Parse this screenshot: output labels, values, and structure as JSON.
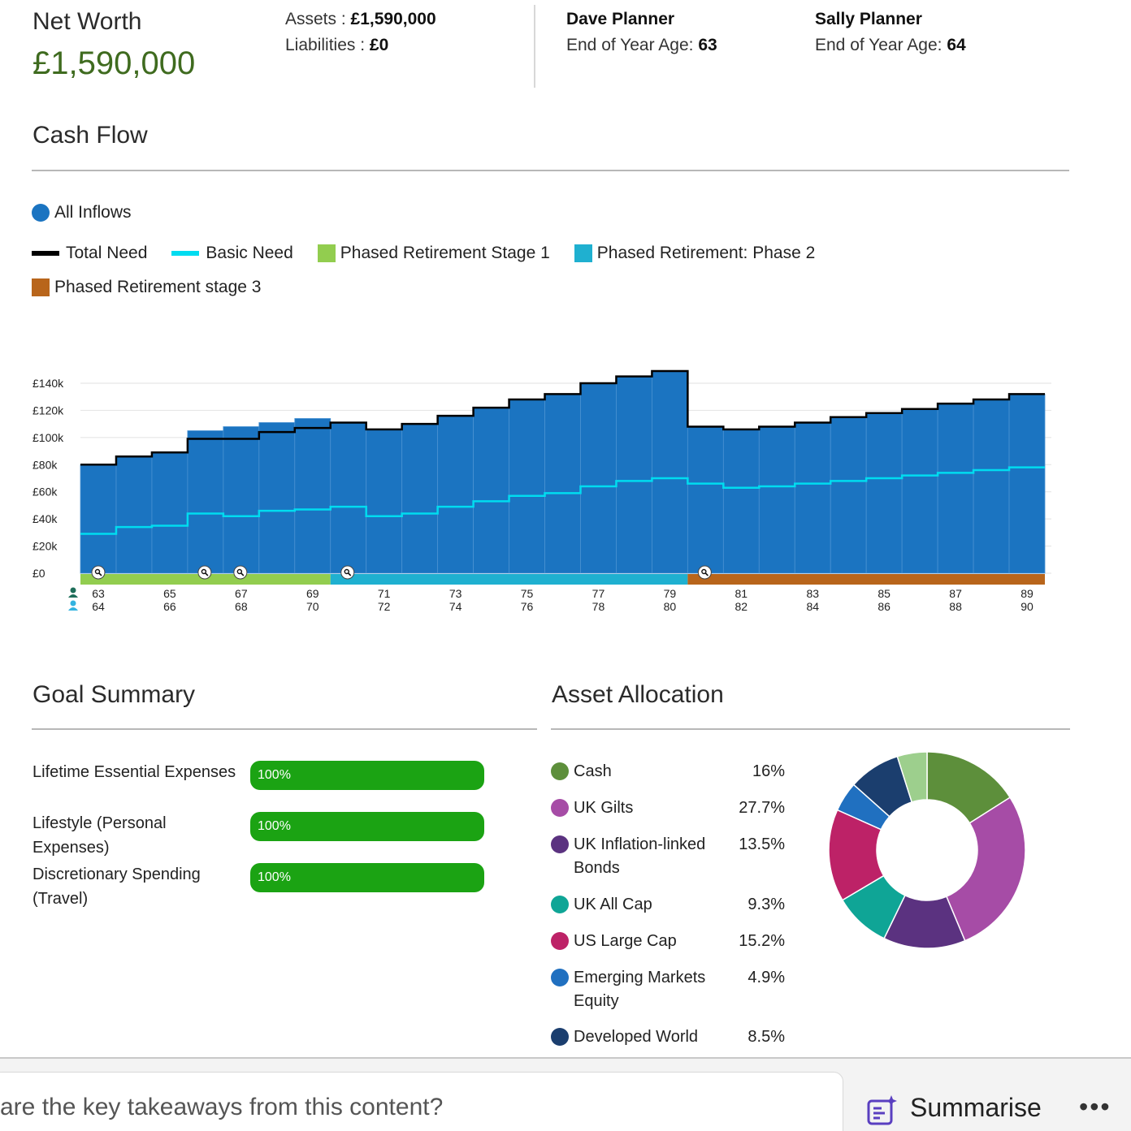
{
  "header": {
    "net_worth_label": "Net Worth",
    "net_worth_value": "£1,590,000",
    "assets_label": "Assets : ",
    "assets_value": "£1,590,000",
    "liabilities_label": "Liabilities : ",
    "liabilities_value": "£0",
    "person1": {
      "name": "Dave Planner",
      "age_label": "End of Year Age: ",
      "age": "63"
    },
    "person2": {
      "name": "Sally Planner",
      "age_label": "End of Year Age: ",
      "age": "64"
    }
  },
  "cash_flow": {
    "title": "Cash Flow",
    "legend": {
      "all_inflows": "All Inflows",
      "total_need": "Total Need",
      "basic_need": "Basic Need",
      "stage1": "Phased Retirement Stage 1",
      "phase2": "Phased Retirement: Phase 2",
      "stage3": "Phased Retirement stage 3"
    }
  },
  "colors": {
    "inflow": "#1b74c1",
    "total_need": "#000000",
    "basic_need": "#00dcf0",
    "stage1": "#92cd4f",
    "phase2": "#1fb0d0",
    "stage3": "#b8651b",
    "accent_green": "#3f6b1f",
    "goal_bar": "#1ba313"
  },
  "chart_data": {
    "type": "bar",
    "title": "Cash Flow",
    "ylim": [
      0,
      140000
    ],
    "ytick_labels": [
      "£0",
      "£20k",
      "£40k",
      "£60k",
      "£80k",
      "£100k",
      "£120k",
      "£140k"
    ],
    "ages_dave": [
      63,
      64,
      65,
      66,
      67,
      68,
      69,
      70,
      71,
      72,
      73,
      74,
      75,
      76,
      77,
      78,
      79,
      80,
      81,
      82,
      83,
      84,
      85,
      86,
      87,
      88,
      89
    ],
    "ages_sally": [
      64,
      65,
      66,
      67,
      68,
      69,
      70,
      71,
      72,
      73,
      74,
      75,
      76,
      77,
      78,
      79,
      80,
      81,
      82,
      83,
      84,
      85,
      86,
      87,
      88,
      89,
      90
    ],
    "x_tick_labels_dave": [
      "63",
      "65",
      "67",
      "69",
      "71",
      "73",
      "75",
      "77",
      "79",
      "81",
      "83",
      "85",
      "87",
      "89"
    ],
    "x_tick_labels_sally": [
      "64",
      "66",
      "68",
      "70",
      "72",
      "74",
      "76",
      "78",
      "80",
      "82",
      "84",
      "86",
      "88",
      "90"
    ],
    "series": [
      {
        "name": "All Inflows",
        "type": "bar",
        "values": [
          80000,
          86000,
          89000,
          105000,
          108000,
          111000,
          114000,
          111000,
          106000,
          110000,
          116000,
          122000,
          128000,
          132000,
          140000,
          145000,
          149000,
          108000,
          106000,
          108000,
          111000,
          115000,
          118000,
          121000,
          125000,
          128000,
          132000
        ]
      },
      {
        "name": "Total Need",
        "type": "step",
        "values": [
          80000,
          86000,
          89000,
          99000,
          99000,
          104000,
          107000,
          111000,
          106000,
          110000,
          116000,
          122000,
          128000,
          132000,
          140000,
          145000,
          149000,
          108000,
          106000,
          108000,
          111000,
          115000,
          118000,
          121000,
          125000,
          128000,
          132000
        ]
      },
      {
        "name": "Basic Need",
        "type": "step",
        "values": [
          29000,
          34000,
          35000,
          44000,
          42000,
          46000,
          47000,
          49000,
          42000,
          44000,
          49000,
          53000,
          57000,
          59000,
          64000,
          68000,
          70000,
          66000,
          63000,
          64000,
          66000,
          68000,
          70000,
          72000,
          74000,
          76000,
          78000
        ]
      }
    ],
    "phases": [
      {
        "name": "Phased Retirement Stage 1",
        "start_index": 0,
        "end_index": 7
      },
      {
        "name": "Phased Retirement: Phase 2",
        "start_index": 7,
        "end_index": 17
      },
      {
        "name": "Phased Retirement stage 3",
        "start_index": 17,
        "end_index": 27
      }
    ],
    "event_markers_at_index": [
      0,
      3,
      4,
      7,
      17
    ]
  },
  "goal_summary": {
    "title": "Goal Summary",
    "goals": [
      {
        "label": "Lifetime Essential Expenses",
        "value": "100%",
        "progress": 1.0
      },
      {
        "label": "Lifestyle (Personal Expenses)",
        "value": "100%",
        "progress": 1.0
      },
      {
        "label": "Discretionary Spending (Travel)",
        "value": "100%",
        "progress": 1.0
      }
    ]
  },
  "asset_allocation": {
    "title": "Asset Allocation",
    "items": [
      {
        "name": "Cash",
        "pct": "16%",
        "value": 16,
        "color": "#5d8f3b"
      },
      {
        "name": "UK Gilts",
        "pct": "27.7%",
        "value": 27.7,
        "color": "#a64ca6"
      },
      {
        "name": "UK Inflation-linked Bonds",
        "pct": "13.5%",
        "value": 13.5,
        "color": "#5b3280"
      },
      {
        "name": "UK All Cap",
        "pct": "9.3%",
        "value": 9.3,
        "color": "#0fa596"
      },
      {
        "name": "US Large Cap",
        "pct": "15.2%",
        "value": 15.2,
        "color": "#bd2267"
      },
      {
        "name": "Emerging Markets Equity",
        "pct": "4.9%",
        "value": 4.9,
        "color": "#2070c0"
      },
      {
        "name": "Developed World",
        "pct": "8.5%",
        "value": 8.5,
        "color": "#1b3e6e"
      }
    ],
    "hidden_slice": {
      "value": 4.9,
      "color": "#9dcf8d"
    }
  },
  "bottom_bar": {
    "prompt": "are the key takeaways from this content?",
    "summarise_label": "Summarise",
    "more_label": "•••"
  }
}
